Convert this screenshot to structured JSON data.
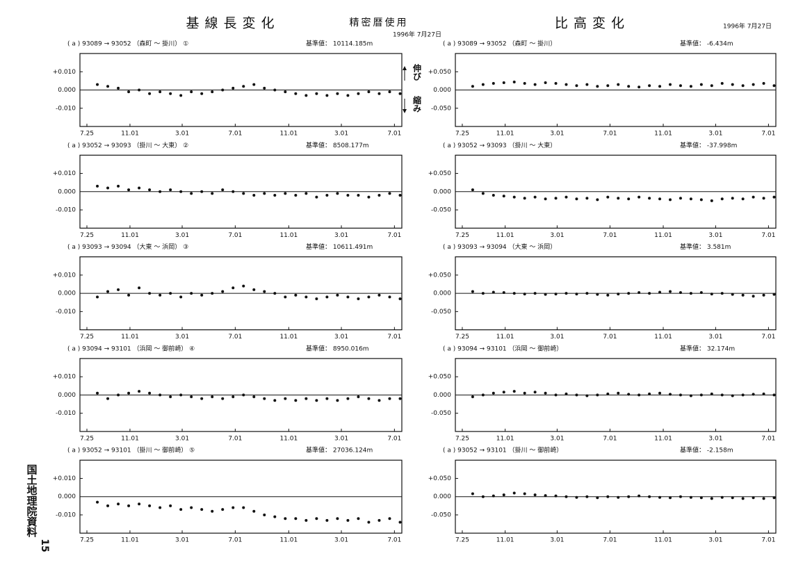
{
  "header": {
    "left_title": "基線長変化",
    "middle_title": "精密暦使用",
    "middle_date": "1996年 7月27日",
    "right_title": "比高変化",
    "right_date": "1996年 7月27日",
    "extend": "伸び",
    "shrink": "縮み",
    "source": "国土地理院資料",
    "page": "15"
  },
  "chart_data": [
    {
      "type": "scatter",
      "title": "( a )  93089 → 93052  （森町 ～ 掛川） ①",
      "reference": "基準値：  10114.185m",
      "color": "#111111",
      "x": [
        24,
        48,
        72,
        96,
        120,
        144,
        168,
        192,
        216,
        240,
        264,
        288,
        312,
        336,
        360,
        384,
        408,
        432,
        456,
        480,
        504,
        528,
        552,
        576,
        600,
        624,
        648,
        672,
        696,
        720
      ],
      "values": [
        0.003,
        0.002,
        0.001,
        -0.001,
        0.0,
        -0.002,
        -0.001,
        -0.002,
        -0.003,
        -0.001,
        -0.002,
        -0.001,
        0.0,
        0.001,
        0.002,
        0.003,
        0.001,
        0.0,
        -0.001,
        -0.002,
        -0.003,
        -0.002,
        -0.003,
        -0.002,
        -0.003,
        -0.002,
        -0.001,
        -0.002,
        -0.001,
        -0.002
      ],
      "xlim": [
        -16,
        724
      ],
      "xticks": [
        {
          "value": 0,
          "label": "7.25"
        },
        {
          "value": 99,
          "label": "11.01"
        },
        {
          "value": 219,
          "label": "3.01"
        },
        {
          "value": 341,
          "label": "7.01"
        },
        {
          "value": 464,
          "label": "11.01"
        },
        {
          "value": 585,
          "label": "3.01"
        },
        {
          "value": 707,
          "label": "7.01"
        }
      ],
      "ylim": [
        -0.02,
        0.02
      ],
      "yticks": [
        {
          "value": 0.01,
          "label": "+0.010"
        },
        {
          "value": 0,
          "label": "0.000"
        },
        {
          "value": -0.01,
          "label": "-0.010"
        }
      ]
    },
    {
      "type": "scatter",
      "title": "( a )  93089 → 93052  （森町 ～ 掛川）",
      "reference": "基準値：  -6.434m",
      "color": "#111111",
      "x": [
        24,
        48,
        72,
        96,
        120,
        144,
        168,
        192,
        216,
        240,
        264,
        288,
        312,
        336,
        360,
        384,
        408,
        432,
        456,
        480,
        504,
        528,
        552,
        576,
        600,
        624,
        648,
        672,
        696,
        720
      ],
      "values": [
        0.01,
        0.015,
        0.018,
        0.02,
        0.022,
        0.018,
        0.015,
        0.02,
        0.018,
        0.015,
        0.012,
        0.015,
        0.01,
        0.012,
        0.015,
        0.01,
        0.008,
        0.012,
        0.01,
        0.015,
        0.012,
        0.01,
        0.015,
        0.012,
        0.018,
        0.015,
        0.012,
        0.015,
        0.018,
        0.012
      ],
      "xlim": [
        -16,
        724
      ],
      "xticks": [
        {
          "value": 0,
          "label": "7.25"
        },
        {
          "value": 99,
          "label": "11.01"
        },
        {
          "value": 219,
          "label": "3.01"
        },
        {
          "value": 341,
          "label": "7.01"
        },
        {
          "value": 464,
          "label": "11.01"
        },
        {
          "value": 585,
          "label": "3.01"
        },
        {
          "value": 707,
          "label": "7.01"
        }
      ],
      "ylim": [
        -0.1,
        0.1
      ],
      "yticks": [
        {
          "value": 0.05,
          "label": "+0.050"
        },
        {
          "value": 0,
          "label": "0.000"
        },
        {
          "value": -0.05,
          "label": "-0.050"
        }
      ]
    },
    {
      "type": "scatter",
      "title": "( a )  93052 → 93093  （掛川 ～ 大東） ②",
      "reference": "基準値：  8508.177m",
      "color": "#111111",
      "x": [
        24,
        48,
        72,
        96,
        120,
        144,
        168,
        192,
        216,
        240,
        264,
        288,
        312,
        336,
        360,
        384,
        408,
        432,
        456,
        480,
        504,
        528,
        552,
        576,
        600,
        624,
        648,
        672,
        696,
        720
      ],
      "values": [
        0.003,
        0.002,
        0.003,
        0.001,
        0.002,
        0.001,
        0.0,
        0.001,
        0.0,
        -0.001,
        0.0,
        -0.001,
        0.001,
        0.0,
        -0.001,
        -0.002,
        -0.001,
        -0.002,
        -0.001,
        -0.002,
        -0.001,
        -0.003,
        -0.002,
        -0.001,
        -0.002,
        -0.002,
        -0.003,
        -0.002,
        -0.001,
        -0.002
      ],
      "xlim": [
        -16,
        724
      ],
      "xticks": [
        {
          "value": 0,
          "label": "7.25"
        },
        {
          "value": 99,
          "label": "11.01"
        },
        {
          "value": 219,
          "label": "3.01"
        },
        {
          "value": 341,
          "label": "7.01"
        },
        {
          "value": 464,
          "label": "11.01"
        },
        {
          "value": 585,
          "label": "3.01"
        },
        {
          "value": 707,
          "label": "7.01"
        }
      ],
      "ylim": [
        -0.02,
        0.02
      ],
      "yticks": [
        {
          "value": 0.01,
          "label": "+0.010"
        },
        {
          "value": 0,
          "label": "0.000"
        },
        {
          "value": -0.01,
          "label": "-0.010"
        }
      ]
    },
    {
      "type": "scatter",
      "title": "( a )  93052 → 93093  （掛川 ～ 大東）",
      "reference": "基準値：  -37.998m",
      "color": "#111111",
      "x": [
        24,
        48,
        72,
        96,
        120,
        144,
        168,
        192,
        216,
        240,
        264,
        288,
        312,
        336,
        360,
        384,
        408,
        432,
        456,
        480,
        504,
        528,
        552,
        576,
        600,
        624,
        648,
        672,
        696,
        720
      ],
      "values": [
        0.005,
        -0.005,
        -0.01,
        -0.012,
        -0.015,
        -0.018,
        -0.015,
        -0.02,
        -0.018,
        -0.015,
        -0.02,
        -0.018,
        -0.022,
        -0.015,
        -0.018,
        -0.02,
        -0.015,
        -0.018,
        -0.02,
        -0.022,
        -0.018,
        -0.02,
        -0.022,
        -0.025,
        -0.02,
        -0.018,
        -0.02,
        -0.015,
        -0.018,
        -0.015
      ],
      "xlim": [
        -16,
        724
      ],
      "xticks": [
        {
          "value": 0,
          "label": "7.25"
        },
        {
          "value": 99,
          "label": "11.01"
        },
        {
          "value": 219,
          "label": "3.01"
        },
        {
          "value": 341,
          "label": "7.01"
        },
        {
          "value": 464,
          "label": "11.01"
        },
        {
          "value": 585,
          "label": "3.01"
        },
        {
          "value": 707,
          "label": "7.01"
        }
      ],
      "ylim": [
        -0.1,
        0.1
      ],
      "yticks": [
        {
          "value": 0.05,
          "label": "+0.050"
        },
        {
          "value": 0,
          "label": "0.000"
        },
        {
          "value": -0.05,
          "label": "-0.050"
        }
      ]
    },
    {
      "type": "scatter",
      "title": "( a )  93093 → 93094  （大東 ～ 浜岡） ③",
      "reference": "基準値：  10611.491m",
      "color": "#111111",
      "x": [
        24,
        48,
        72,
        96,
        120,
        144,
        168,
        192,
        216,
        240,
        264,
        288,
        312,
        336,
        360,
        384,
        408,
        432,
        456,
        480,
        504,
        528,
        552,
        576,
        600,
        624,
        648,
        672,
        696,
        720
      ],
      "values": [
        -0.002,
        0.001,
        0.002,
        -0.001,
        0.003,
        0.0,
        -0.001,
        0.0,
        -0.002,
        0.0,
        -0.001,
        0.0,
        0.001,
        0.003,
        0.004,
        0.002,
        0.001,
        0.0,
        -0.002,
        -0.001,
        -0.002,
        -0.003,
        -0.002,
        -0.001,
        -0.002,
        -0.003,
        -0.002,
        -0.001,
        -0.002,
        -0.003
      ],
      "xlim": [
        -16,
        724
      ],
      "xticks": [
        {
          "value": 0,
          "label": "7.25"
        },
        {
          "value": 99,
          "label": "11.01"
        },
        {
          "value": 219,
          "label": "3.01"
        },
        {
          "value": 341,
          "label": "7.01"
        },
        {
          "value": 464,
          "label": "11.01"
        },
        {
          "value": 585,
          "label": "3.01"
        },
        {
          "value": 707,
          "label": "7.01"
        }
      ],
      "ylim": [
        -0.02,
        0.02
      ],
      "yticks": [
        {
          "value": 0.01,
          "label": "+0.010"
        },
        {
          "value": 0,
          "label": "0.000"
        },
        {
          "value": -0.01,
          "label": "-0.010"
        }
      ]
    },
    {
      "type": "scatter",
      "title": "( a )  93093 → 93094  （大東 ～ 浜岡）",
      "reference": "基準値：  3.581m",
      "color": "#111111",
      "x": [
        24,
        48,
        72,
        96,
        120,
        144,
        168,
        192,
        216,
        240,
        264,
        288,
        312,
        336,
        360,
        384,
        408,
        432,
        456,
        480,
        504,
        528,
        552,
        576,
        600,
        624,
        648,
        672,
        696,
        720
      ],
      "values": [
        0.005,
        0.0,
        0.003,
        0.002,
        0.0,
        -0.002,
        0.0,
        -0.003,
        -0.002,
        0.0,
        -0.002,
        0.0,
        -0.003,
        -0.005,
        -0.002,
        0.0,
        0.002,
        0.0,
        0.003,
        0.005,
        0.002,
        0.0,
        0.002,
        -0.002,
        0.0,
        -0.003,
        -0.005,
        -0.008,
        -0.005,
        -0.003
      ],
      "xlim": [
        -16,
        724
      ],
      "xticks": [
        {
          "value": 0,
          "label": "7.25"
        },
        {
          "value": 99,
          "label": "11.01"
        },
        {
          "value": 219,
          "label": "3.01"
        },
        {
          "value": 341,
          "label": "7.01"
        },
        {
          "value": 464,
          "label": "11.01"
        },
        {
          "value": 585,
          "label": "3.01"
        },
        {
          "value": 707,
          "label": "7.01"
        }
      ],
      "ylim": [
        -0.1,
        0.1
      ],
      "yticks": [
        {
          "value": 0.05,
          "label": "+0.050"
        },
        {
          "value": 0,
          "label": "0.000"
        },
        {
          "value": -0.05,
          "label": "-0.050"
        }
      ]
    },
    {
      "type": "scatter",
      "title": "( a )  93094 → 93101  （浜岡 ～ 御前崎） ④",
      "reference": "基準値：  8950.016m",
      "color": "#111111",
      "x": [
        24,
        48,
        72,
        96,
        120,
        144,
        168,
        192,
        216,
        240,
        264,
        288,
        312,
        336,
        360,
        384,
        408,
        432,
        456,
        480,
        504,
        528,
        552,
        576,
        600,
        624,
        648,
        672,
        696,
        720
      ],
      "values": [
        0.001,
        -0.002,
        0.0,
        0.001,
        0.002,
        0.001,
        0.0,
        -0.001,
        0.0,
        -0.001,
        -0.002,
        -0.001,
        -0.002,
        -0.001,
        0.0,
        -0.001,
        -0.002,
        -0.003,
        -0.002,
        -0.003,
        -0.002,
        -0.003,
        -0.002,
        -0.003,
        -0.002,
        -0.001,
        -0.002,
        -0.003,
        -0.002,
        -0.002
      ],
      "xlim": [
        -16,
        724
      ],
      "xticks": [
        {
          "value": 0,
          "label": "7.25"
        },
        {
          "value": 99,
          "label": "11.01"
        },
        {
          "value": 219,
          "label": "3.01"
        },
        {
          "value": 341,
          "label": "7.01"
        },
        {
          "value": 464,
          "label": "11.01"
        },
        {
          "value": 585,
          "label": "3.01"
        },
        {
          "value": 707,
          "label": "7.01"
        }
      ],
      "ylim": [
        -0.02,
        0.02
      ],
      "yticks": [
        {
          "value": 0.01,
          "label": "+0.010"
        },
        {
          "value": 0,
          "label": "0.000"
        },
        {
          "value": -0.01,
          "label": "-0.010"
        }
      ]
    },
    {
      "type": "scatter",
      "title": "( a )  93094 → 93101  （浜岡 ～ 御前崎）",
      "reference": "基準値：  32.174m",
      "color": "#111111",
      "x": [
        24,
        48,
        72,
        96,
        120,
        144,
        168,
        192,
        216,
        240,
        264,
        288,
        312,
        336,
        360,
        384,
        408,
        432,
        456,
        480,
        504,
        528,
        552,
        576,
        600,
        624,
        648,
        672,
        696,
        720
      ],
      "values": [
        -0.005,
        0.0,
        0.005,
        0.008,
        0.01,
        0.005,
        0.008,
        0.005,
        0.0,
        0.003,
        0.0,
        -0.002,
        0.0,
        0.003,
        0.005,
        0.002,
        0.0,
        0.003,
        0.005,
        0.002,
        0.0,
        -0.002,
        0.0,
        0.003,
        0.0,
        -0.002,
        0.0,
        0.002,
        0.003,
        0.0
      ],
      "xlim": [
        -16,
        724
      ],
      "xticks": [
        {
          "value": 0,
          "label": "7.25"
        },
        {
          "value": 99,
          "label": "11.01"
        },
        {
          "value": 219,
          "label": "3.01"
        },
        {
          "value": 341,
          "label": "7.01"
        },
        {
          "value": 464,
          "label": "11.01"
        },
        {
          "value": 585,
          "label": "3.01"
        },
        {
          "value": 707,
          "label": "7.01"
        }
      ],
      "ylim": [
        -0.1,
        0.1
      ],
      "yticks": [
        {
          "value": 0.05,
          "label": "+0.050"
        },
        {
          "value": 0,
          "label": "0.000"
        },
        {
          "value": -0.05,
          "label": "-0.050"
        }
      ]
    },
    {
      "type": "scatter",
      "title": "( a )  93052 → 93101  （掛川 ～ 御前崎） ⑤",
      "reference": "基準値：  27036.124m",
      "color": "#111111",
      "x": [
        24,
        48,
        72,
        96,
        120,
        144,
        168,
        192,
        216,
        240,
        264,
        288,
        312,
        336,
        360,
        384,
        408,
        432,
        456,
        480,
        504,
        528,
        552,
        576,
        600,
        624,
        648,
        672,
        696,
        720
      ],
      "values": [
        -0.003,
        -0.005,
        -0.004,
        -0.005,
        -0.004,
        -0.005,
        -0.006,
        -0.005,
        -0.007,
        -0.006,
        -0.007,
        -0.008,
        -0.007,
        -0.006,
        -0.006,
        -0.008,
        -0.01,
        -0.011,
        -0.012,
        -0.012,
        -0.013,
        -0.012,
        -0.013,
        -0.012,
        -0.013,
        -0.012,
        -0.014,
        -0.013,
        -0.012,
        -0.014
      ],
      "xlim": [
        -16,
        724
      ],
      "xticks": [
        {
          "value": 0,
          "label": "7.25"
        },
        {
          "value": 99,
          "label": "11.01"
        },
        {
          "value": 219,
          "label": "3.01"
        },
        {
          "value": 341,
          "label": "7.01"
        },
        {
          "value": 464,
          "label": "11.01"
        },
        {
          "value": 585,
          "label": "3.01"
        },
        {
          "value": 707,
          "label": "7.01"
        }
      ],
      "ylim": [
        -0.02,
        0.02
      ],
      "yticks": [
        {
          "value": 0.01,
          "label": "+0.010"
        },
        {
          "value": 0,
          "label": "0.000"
        },
        {
          "value": -0.01,
          "label": "-0.010"
        }
      ]
    },
    {
      "type": "scatter",
      "title": "( a )  93052 → 93101  （掛川 ～ 御前崎）",
      "reference": "基準値：  -2.158m",
      "color": "#111111",
      "x": [
        24,
        48,
        72,
        96,
        120,
        144,
        168,
        192,
        216,
        240,
        264,
        288,
        312,
        336,
        360,
        384,
        408,
        432,
        456,
        480,
        504,
        528,
        552,
        576,
        600,
        624,
        648,
        672,
        696,
        720
      ],
      "values": [
        0.008,
        0.0,
        0.002,
        0.005,
        0.01,
        0.008,
        0.005,
        0.003,
        0.002,
        0.0,
        -0.002,
        0.0,
        -0.003,
        0.0,
        -0.002,
        0.0,
        0.002,
        0.0,
        -0.002,
        -0.003,
        0.0,
        -0.002,
        -0.003,
        -0.005,
        -0.002,
        -0.003,
        -0.005,
        -0.003,
        -0.005,
        -0.003
      ],
      "xlim": [
        -16,
        724
      ],
      "xticks": [
        {
          "value": 0,
          "label": "7.25"
        },
        {
          "value": 99,
          "label": "11.01"
        },
        {
          "value": 219,
          "label": "3.01"
        },
        {
          "value": 341,
          "label": "7.01"
        },
        {
          "value": 464,
          "label": "11.01"
        },
        {
          "value": 585,
          "label": "3.01"
        },
        {
          "value": 707,
          "label": "7.01"
        }
      ],
      "ylim": [
        -0.1,
        0.1
      ],
      "yticks": [
        {
          "value": 0.05,
          "label": "+0.050"
        },
        {
          "value": 0,
          "label": "0.000"
        },
        {
          "value": -0.05,
          "label": "-0.050"
        }
      ]
    }
  ]
}
